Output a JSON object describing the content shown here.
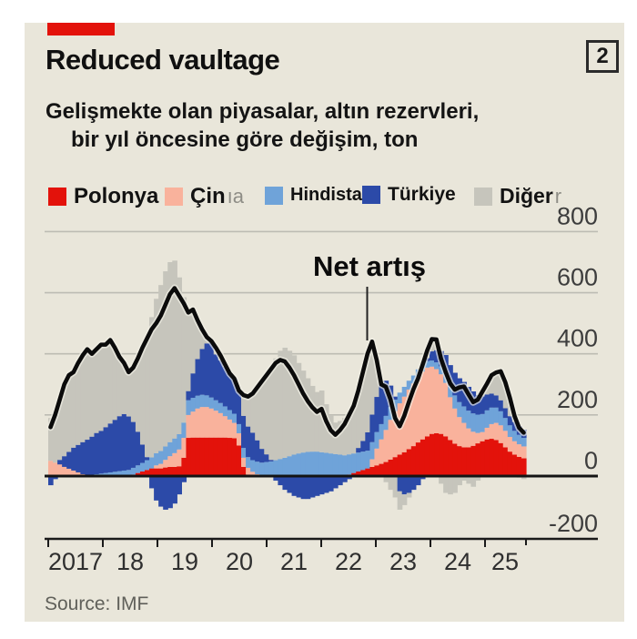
{
  "header": {
    "title": "Reduced vaultage",
    "index_badge": "2"
  },
  "subtitle": {
    "line1": "Gelişmekte olan piyasalar, altın rezervleri,",
    "line2": "bir yıl öncesine göre değişim, ton"
  },
  "legend": [
    {
      "label": "Polonya",
      "color": "#e3120b",
      "ghost": ""
    },
    {
      "label": "Çin",
      "color": "#f9b29c",
      "ghost": "ıa"
    },
    {
      "label": "Hindistan",
      "color": "#6fa3d9",
      "ghost": ""
    },
    {
      "label": "Türkiye",
      "color": "#2c4aa8",
      "ghost": ""
    },
    {
      "label": "Diğer",
      "color": "#c6c5bc",
      "ghost": "r"
    }
  ],
  "source": "Source: IMF",
  "colors": {
    "accent": "#e3120b",
    "panel_background": "#e9e6da",
    "grid": "#bdbcb3",
    "zero_line": "#141414",
    "net_line": "#0b0b0b",
    "axis": "#1a1a1a",
    "tick_label": "#3d3d3d"
  },
  "chart_data": {
    "type": "bar",
    "subtype": "monthly-stacked-bars-with-net-line",
    "title": "Reduced vaultage",
    "note": "Gelişmekte olan piyasalar, altın rezervleri, bir yıl öncesine göre değişim, ton",
    "x_start": "2017-01",
    "x_end": "2025-08",
    "x_tick_labels": [
      "2017",
      "18",
      "19",
      "20",
      "21",
      "22",
      "23",
      "24",
      "25"
    ],
    "y_ticks": [
      800,
      600,
      400,
      200,
      0,
      -200
    ],
    "ylim": [
      -200,
      800
    ],
    "grid": true,
    "legend_position": "top",
    "annotation": {
      "text": "Net artış",
      "points_to": "2022-11 peak of net line"
    },
    "net_line": {
      "label": "Net artış",
      "color": "#0b0b0b",
      "definition": "sum of all series"
    },
    "series": [
      {
        "name": "Polonya",
        "color": "#e3120b",
        "values": [
          0,
          0,
          0,
          0,
          0,
          0,
          0,
          0,
          0,
          0,
          0,
          0,
          0,
          0,
          0,
          0,
          0,
          0,
          5,
          10,
          15,
          20,
          25,
          25,
          25,
          28,
          30,
          30,
          32,
          60,
          125,
          126,
          126,
          126,
          126,
          126,
          126,
          126,
          126,
          125,
          124,
          100,
          30,
          5,
          0,
          0,
          0,
          0,
          0,
          0,
          0,
          0,
          0,
          0,
          0,
          0,
          0,
          0,
          0,
          0,
          0,
          0,
          0,
          0,
          0,
          5,
          10,
          15,
          20,
          25,
          30,
          35,
          40,
          46,
          54,
          62,
          70,
          78,
          88,
          98,
          110,
          120,
          130,
          138,
          140,
          138,
          130,
          118,
          106,
          98,
          94,
          94,
          99,
          107,
          114,
          120,
          122,
          118,
          108,
          94,
          80,
          70,
          63,
          58
        ]
      },
      {
        "name": "Çin",
        "color": "#f9b29c",
        "values": [
          50,
          44,
          38,
          30,
          24,
          18,
          12,
          6,
          2,
          0,
          0,
          0,
          0,
          0,
          0,
          0,
          0,
          0,
          0,
          0,
          0,
          0,
          0,
          10,
          15,
          25,
          35,
          45,
          55,
          65,
          75,
          85,
          95,
          100,
          100,
          95,
          88,
          80,
          70,
          60,
          50,
          40,
          30,
          22,
          14,
          6,
          0,
          0,
          0,
          0,
          0,
          0,
          0,
          0,
          0,
          0,
          0,
          0,
          0,
          0,
          0,
          0,
          0,
          0,
          0,
          0,
          0,
          0,
          0,
          0,
          25,
          55,
          80,
          105,
          130,
          150,
          168,
          182,
          195,
          205,
          215,
          222,
          225,
          220,
          210,
          195,
          175,
          140,
          115,
          95,
          80,
          62,
          46,
          34,
          30,
          38,
          48,
          56,
          58,
          54,
          48,
          44,
          41,
          39
        ]
      },
      {
        "name": "Hindistan",
        "color": "#6fa3d9",
        "values": [
          0,
          0,
          0,
          0,
          0,
          0,
          0,
          0,
          2,
          4,
          6,
          8,
          10,
          12,
          14,
          16,
          18,
          20,
          22,
          25,
          28,
          32,
          36,
          40,
          42,
          44,
          46,
          48,
          50,
          50,
          48,
          45,
          42,
          40,
          38,
          36,
          34,
          33,
          32,
          31,
          30,
          30,
          32,
          35,
          38,
          41,
          44,
          46,
          48,
          52,
          56,
          60,
          65,
          70,
          74,
          77,
          79,
          80,
          80,
          78,
          76,
          74,
          72,
          70,
          68,
          66,
          64,
          62,
          60,
          58,
          56,
          54,
          50,
          46,
          42,
          38,
          35,
          32,
          29,
          26,
          24,
          22,
          21,
          20,
          22,
          26,
          31,
          37,
          43,
          49,
          54,
          58,
          60,
          60,
          59,
          57,
          54,
          50,
          46,
          42,
          38,
          34,
          31,
          28
        ]
      },
      {
        "name": "Türkiye",
        "color": "#2c4aa8",
        "values": [
          -30,
          -10,
          15,
          35,
          55,
          75,
          90,
          105,
          115,
          125,
          135,
          140,
          150,
          160,
          170,
          180,
          185,
          175,
          150,
          110,
          60,
          10,
          -40,
          -80,
          -100,
          -110,
          -105,
          -90,
          -60,
          -20,
          30,
          80,
          120,
          150,
          170,
          185,
          150,
          140,
          130,
          120,
          115,
          110,
          105,
          100,
          90,
          70,
          45,
          25,
          5,
          -15,
          -30,
          -45,
          -55,
          -65,
          -70,
          -75,
          -75,
          -70,
          -65,
          -60,
          -55,
          -50,
          -40,
          -30,
          -20,
          -10,
          0,
          15,
          35,
          60,
          90,
          115,
          130,
          115,
          70,
          10,
          -50,
          -60,
          -55,
          -45,
          -30,
          -10,
          10,
          30,
          40,
          50,
          60,
          68,
          74,
          78,
          80,
          78,
          72,
          64,
          58,
          52,
          46,
          40,
          36,
          32,
          30,
          29,
          28,
          27
        ]
      },
      {
        "name": "Diğer",
        "color": "#c6c5bc",
        "values": [
          140,
          166,
          197,
          235,
          251,
          247,
          268,
          284,
          296,
          271,
          274,
          282,
          270,
          273,
          236,
          194,
          167,
          145,
          178,
          240,
          317,
          388,
          459,
          505,
          543,
          573,
          589,
          582,
          513,
          410,
          257,
          209,
          127,
          64,
          21,
          0,
          22,
          16,
          7,
          0,
          0,
          0,
          68,
          98,
          128,
          173,
          221,
          259,
          297,
          333,
          354,
          360,
          345,
          325,
          296,
          268,
          241,
          215,
          195,
          202,
          159,
          126,
          103,
          110,
          122,
          139,
          156,
          188,
          225,
          257,
          239,
          121,
          0,
          -20,
          -45,
          -70,
          -60,
          -35,
          -15,
          0,
          0,
          10,
          25,
          40,
          35,
          -25,
          -55,
          -60,
          -55,
          -30,
          -15,
          -25,
          -35,
          -15,
          15,
          35,
          60,
          75,
          95,
          85,
          60,
          20,
          -5,
          -10
        ]
      }
    ]
  }
}
